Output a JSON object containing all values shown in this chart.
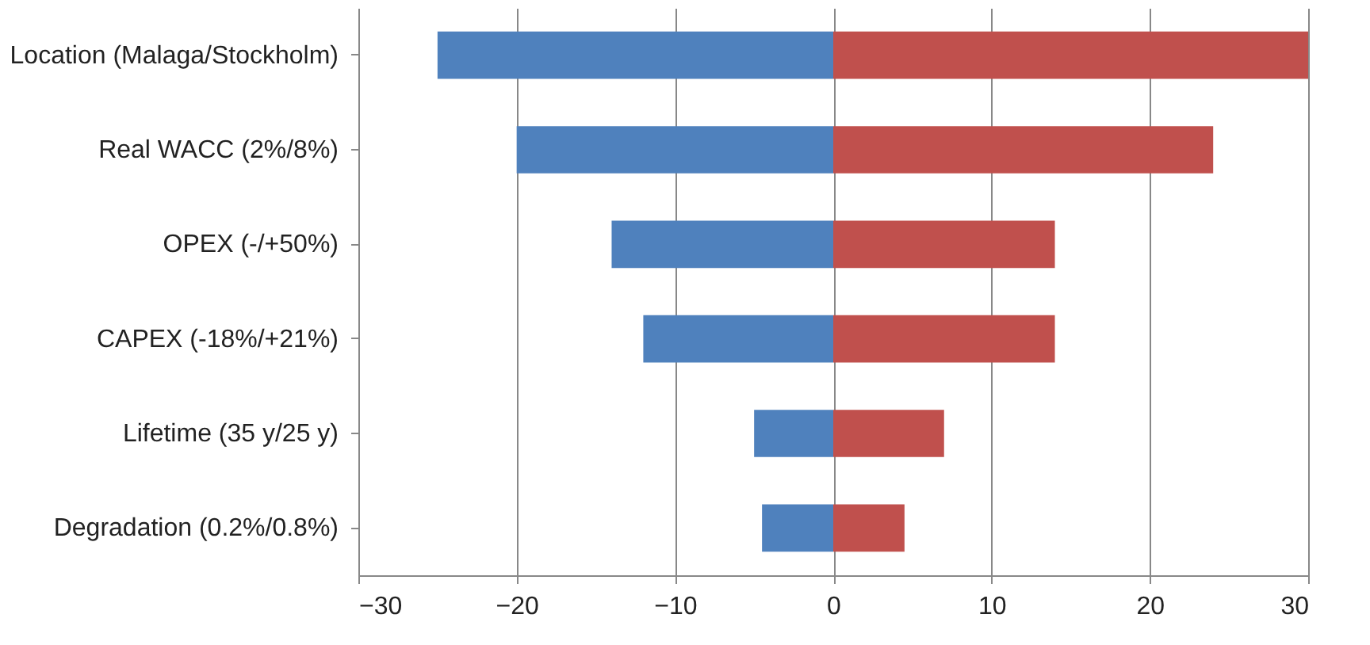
{
  "chart_data": {
    "type": "bar",
    "orientation": "horizontal",
    "stacked": true,
    "categories": [
      "Location (Malaga/Stockholm)",
      "Real WACC (2%/8%)",
      "OPEX (-/+50%)",
      "CAPEX (-18%/+21%)",
      "Lifetime (35 y/25 y)",
      "Degradation (0.2%/0.8%)"
    ],
    "series": [
      {
        "color": "#4f81bd",
        "values": [
          -25,
          -20,
          -14,
          -12,
          -5,
          -4.5
        ]
      },
      {
        "color": "#c0504d",
        "values": [
          30,
          24,
          14,
          14,
          7,
          4.5
        ]
      }
    ],
    "xlim": [
      -30,
      30
    ],
    "xticks": [
      -30,
      -20,
      -10,
      0,
      10,
      20,
      30
    ],
    "grid": "x",
    "legend": false
  }
}
